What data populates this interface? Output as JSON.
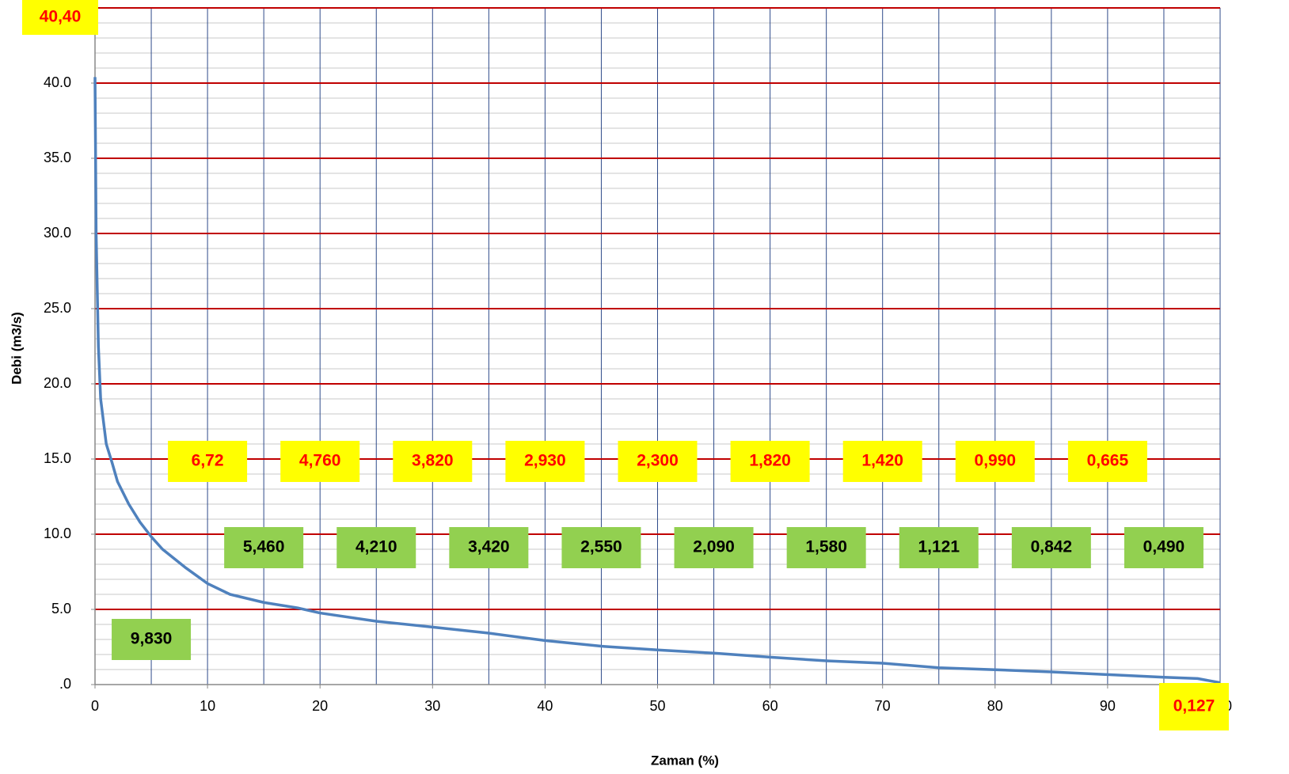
{
  "chart_data": {
    "type": "line",
    "x_label": "Zaman (%)",
    "y_label": "Debi (m3/s)",
    "x": [
      0,
      0.1,
      0.3,
      0.5,
      1,
      1.5,
      2,
      3,
      4,
      5,
      6,
      8,
      10,
      12,
      15,
      18,
      20,
      25,
      30,
      35,
      40,
      45,
      50,
      55,
      60,
      65,
      70,
      75,
      80,
      85,
      90,
      95,
      98,
      100
    ],
    "series": [
      {
        "name": "Debi",
        "color": "#4f81bd",
        "values": [
          40.4,
          30,
          22.5,
          19,
          16,
          14.8,
          13.5,
          12,
          10.8,
          9.83,
          9.0,
          7.8,
          6.72,
          6.0,
          5.46,
          5.1,
          4.76,
          4.21,
          3.82,
          3.42,
          2.93,
          2.55,
          2.3,
          2.09,
          1.82,
          1.58,
          1.42,
          1.121,
          0.99,
          0.842,
          0.665,
          0.49,
          0.4,
          0.127
        ]
      }
    ],
    "xlim": [
      0,
      100
    ],
    "ylim": [
      0,
      45
    ],
    "xticks": [
      0,
      10,
      20,
      30,
      40,
      50,
      60,
      70,
      80,
      90,
      100
    ],
    "yticks": [
      {
        "value": 0,
        "label": ".0"
      },
      {
        "value": 5,
        "label": "5.0"
      },
      {
        "value": 10,
        "label": "10.0"
      },
      {
        "value": 15,
        "label": "15.0"
      },
      {
        "value": 20,
        "label": "20.0"
      },
      {
        "value": 25,
        "label": "25.0"
      },
      {
        "value": 30,
        "label": "30.0"
      },
      {
        "value": 35,
        "label": "35.0"
      },
      {
        "value": 40,
        "label": "40.0"
      }
    ],
    "xgrid_step": 5,
    "ygrid_minor_step": 1,
    "ygrid_major_step": 5,
    "annotations": [
      {
        "x": 0,
        "label": "40,40",
        "style": "yellow"
      },
      {
        "x": 5,
        "label": "9,830",
        "style": "green"
      },
      {
        "x": 10,
        "label": "6,72",
        "style": "yellow"
      },
      {
        "x": 15,
        "label": "5,460",
        "style": "green"
      },
      {
        "x": 20,
        "label": "4,760",
        "style": "yellow"
      },
      {
        "x": 25,
        "label": "4,210",
        "style": "green"
      },
      {
        "x": 30,
        "label": "3,820",
        "style": "yellow"
      },
      {
        "x": 35,
        "label": "3,420",
        "style": "green"
      },
      {
        "x": 40,
        "label": "2,930",
        "style": "yellow"
      },
      {
        "x": 45,
        "label": "2,550",
        "style": "green"
      },
      {
        "x": 50,
        "label": "2,300",
        "style": "yellow"
      },
      {
        "x": 55,
        "label": "2,090",
        "style": "green"
      },
      {
        "x": 60,
        "label": "1,820",
        "style": "yellow"
      },
      {
        "x": 65,
        "label": "1,580",
        "style": "green"
      },
      {
        "x": 70,
        "label": "1,420",
        "style": "yellow"
      },
      {
        "x": 75,
        "label": "1,121",
        "style": "green"
      },
      {
        "x": 80,
        "label": "0,990",
        "style": "yellow"
      },
      {
        "x": 85,
        "label": "0,842",
        "style": "green"
      },
      {
        "x": 90,
        "label": "0,665",
        "style": "yellow"
      },
      {
        "x": 95,
        "label": "0,490",
        "style": "green"
      },
      {
        "x": 100,
        "label": "0,127",
        "style": "yellow"
      }
    ]
  }
}
